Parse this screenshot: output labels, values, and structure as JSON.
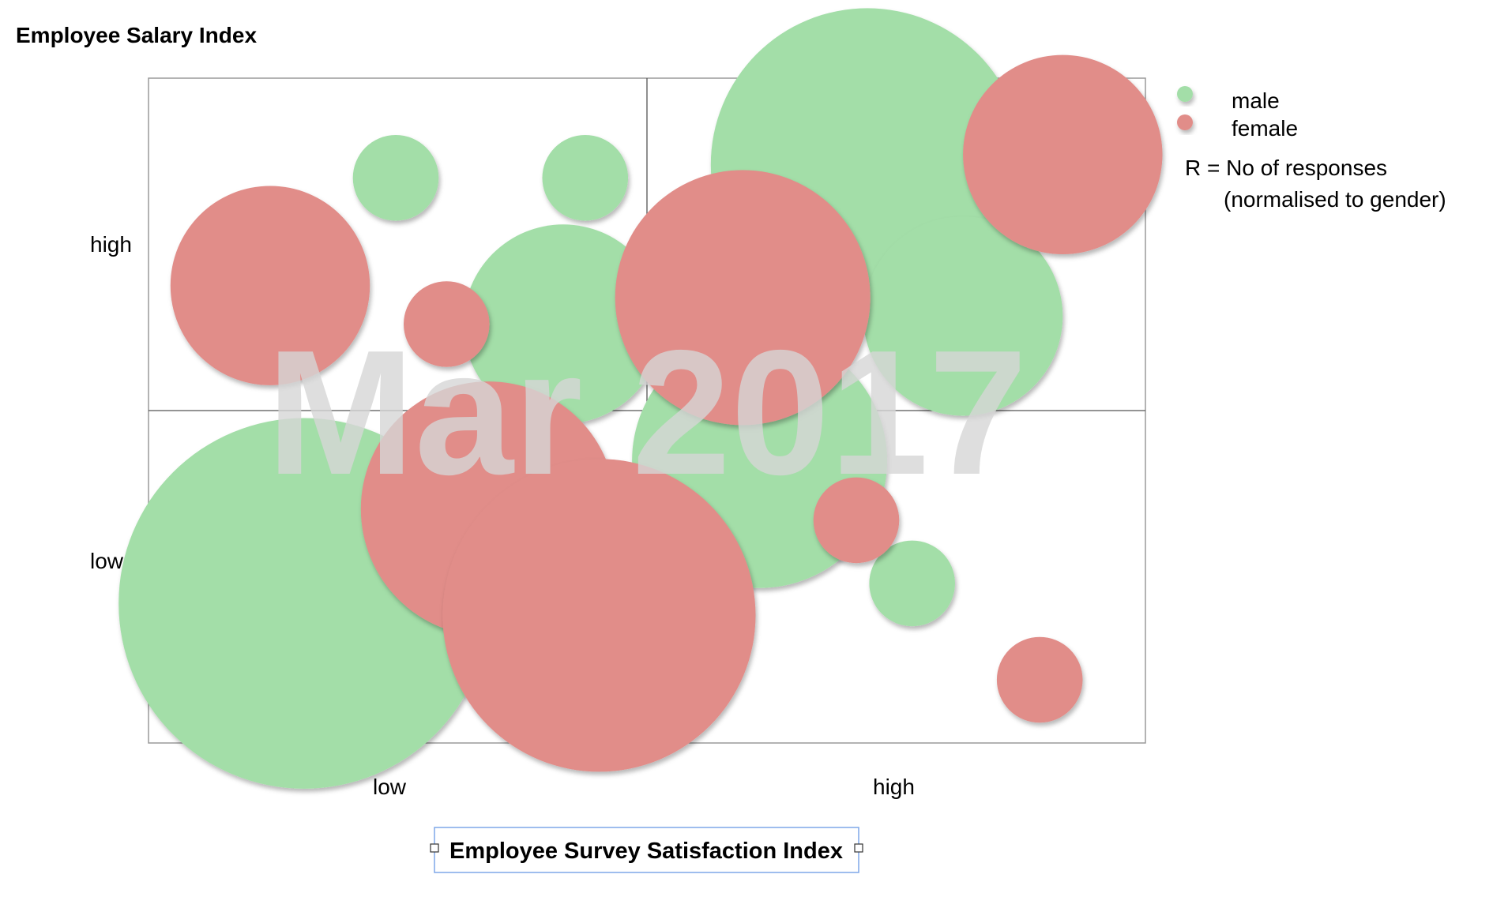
{
  "chart_data": {
    "type": "scatter",
    "subtype": "bubble-quadrant",
    "title": "Employee Salary Index",
    "xlabel": "Employee Survey Satisfaction Index",
    "ylabel": "",
    "x_ticks": [
      "low",
      "high"
    ],
    "y_ticks": [
      "high",
      "low"
    ],
    "xlim": [
      0,
      100
    ],
    "ylim": [
      0,
      100
    ],
    "grid": false,
    "quadrant_dividers": {
      "x": 50,
      "y": 50
    },
    "watermark": "Mar 2017",
    "legend": {
      "placement": "right",
      "entries": [
        {
          "label": "male",
          "color": "#a3dea8"
        },
        {
          "label": "female",
          "color": "#e18d89"
        }
      ],
      "note_line1": "R = No of responses",
      "note_line2": "(normalised to gender)"
    },
    "series": [
      {
        "name": "male",
        "color": "#a3dea8",
        "points": [
          {
            "x": 24.8,
            "y": 85.0,
            "r": 4.3
          },
          {
            "x": 43.8,
            "y": 85.0,
            "r": 4.3
          },
          {
            "x": 41.6,
            "y": 63.0,
            "r": 10.0
          },
          {
            "x": 72.1,
            "y": 87.0,
            "r": 15.7
          },
          {
            "x": 81.7,
            "y": 64.2,
            "r": 10.0
          },
          {
            "x": 61.3,
            "y": 42.5,
            "r": 12.8
          },
          {
            "x": 76.6,
            "y": 24.0,
            "r": 4.3
          },
          {
            "x": 15.6,
            "y": 21.0,
            "r": 18.6
          }
        ]
      },
      {
        "name": "female",
        "color": "#e18d89",
        "points": [
          {
            "x": 91.7,
            "y": 88.5,
            "r": 10.0
          },
          {
            "x": 12.2,
            "y": 68.8,
            "r": 10.0
          },
          {
            "x": 29.9,
            "y": 63.0,
            "r": 4.3
          },
          {
            "x": 59.6,
            "y": 67.0,
            "r": 12.8
          },
          {
            "x": 34.1,
            "y": 35.2,
            "r": 12.8
          },
          {
            "x": 71.0,
            "y": 33.5,
            "r": 4.3
          },
          {
            "x": 45.2,
            "y": 19.2,
            "r": 15.7
          },
          {
            "x": 89.4,
            "y": 9.5,
            "r": 4.3
          }
        ]
      }
    ]
  }
}
